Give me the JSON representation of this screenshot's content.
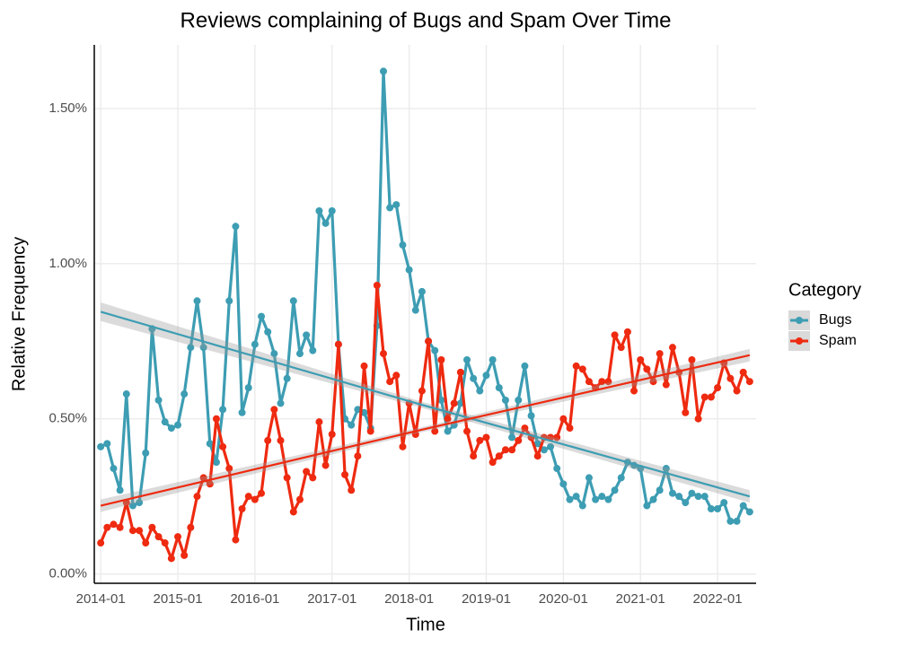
{
  "chart_data": {
    "type": "line",
    "title": "Reviews complaining of Bugs and Spam Over Time",
    "x_label": "Time",
    "y_label": "Relative Frequency",
    "legend": {
      "title": "Category",
      "position": "right"
    },
    "grid": true,
    "x": [
      "2014-01",
      "2014-02",
      "2014-03",
      "2014-04",
      "2014-05",
      "2014-06",
      "2014-07",
      "2014-08",
      "2014-09",
      "2014-10",
      "2014-11",
      "2014-12",
      "2015-01",
      "2015-02",
      "2015-03",
      "2015-04",
      "2015-05",
      "2015-06",
      "2015-07",
      "2015-08",
      "2015-09",
      "2015-10",
      "2015-11",
      "2015-12",
      "2016-01",
      "2016-02",
      "2016-03",
      "2016-04",
      "2016-05",
      "2016-06",
      "2016-07",
      "2016-08",
      "2016-09",
      "2016-10",
      "2016-11",
      "2016-12",
      "2017-01",
      "2017-02",
      "2017-03",
      "2017-04",
      "2017-05",
      "2017-06",
      "2017-07",
      "2017-08",
      "2017-09",
      "2017-10",
      "2017-11",
      "2017-12",
      "2018-01",
      "2018-02",
      "2018-03",
      "2018-04",
      "2018-05",
      "2018-06",
      "2018-07",
      "2018-08",
      "2018-09",
      "2018-10",
      "2018-11",
      "2018-12",
      "2019-01",
      "2019-02",
      "2019-03",
      "2019-04",
      "2019-05",
      "2019-06",
      "2019-07",
      "2019-08",
      "2019-09",
      "2019-10",
      "2019-11",
      "2019-12",
      "2020-01",
      "2020-02",
      "2020-03",
      "2020-04",
      "2020-05",
      "2020-06",
      "2020-07",
      "2020-08",
      "2020-09",
      "2020-10",
      "2020-11",
      "2020-12",
      "2021-01",
      "2021-02",
      "2021-03",
      "2021-04",
      "2021-05",
      "2021-06",
      "2021-07",
      "2021-08",
      "2021-09",
      "2021-10",
      "2021-11",
      "2021-12",
      "2022-01",
      "2022-02",
      "2022-03",
      "2022-04",
      "2022-05",
      "2022-06"
    ],
    "xlim": [
      "2013-12",
      "2022-07"
    ],
    "xticks": [
      "2014-01",
      "2015-01",
      "2016-01",
      "2017-01",
      "2018-01",
      "2019-01",
      "2020-01",
      "2021-01",
      "2022-01"
    ],
    "ylim": [
      -0.03,
      1.705
    ],
    "yticks": [
      {
        "value": 0,
        "label": "0.00%"
      },
      {
        "value": 0.5,
        "label": "0.50%"
      },
      {
        "value": 1,
        "label": "1.00%"
      },
      {
        "value": 1.5,
        "label": "1.50%"
      }
    ],
    "series": [
      {
        "name": "Bugs",
        "color": "#3d9db3",
        "values": [
          0.41,
          0.42,
          0.34,
          0.27,
          0.58,
          0.22,
          0.23,
          0.39,
          0.79,
          0.56,
          0.49,
          0.47,
          0.48,
          0.58,
          0.73,
          0.88,
          0.73,
          0.42,
          0.36,
          0.53,
          0.88,
          1.12,
          0.52,
          0.6,
          0.74,
          0.83,
          0.78,
          0.71,
          0.55,
          0.63,
          0.88,
          0.71,
          0.77,
          0.72,
          1.17,
          1.13,
          1.17,
          0.74,
          0.5,
          0.48,
          0.53,
          0.52,
          0.47,
          0.8,
          1.62,
          1.18,
          1.19,
          1.06,
          0.98,
          0.85,
          0.91,
          0.75,
          0.72,
          0.56,
          0.46,
          0.48,
          0.55,
          0.69,
          0.63,
          0.59,
          0.64,
          0.69,
          0.6,
          0.56,
          0.44,
          0.56,
          0.67,
          0.51,
          0.42,
          0.4,
          0.41,
          0.34,
          0.29,
          0.24,
          0.25,
          0.22,
          0.31,
          0.24,
          0.25,
          0.24,
          0.27,
          0.31,
          0.36,
          0.35,
          0.34,
          0.22,
          0.24,
          0.27,
          0.34,
          0.26,
          0.25,
          0.23,
          0.26,
          0.25,
          0.25,
          0.21,
          0.21,
          0.23,
          0.17,
          0.17,
          0.22,
          0.2
        ],
        "trend": {
          "x": [
            "2014-01",
            "2018-03",
            "2022-06"
          ],
          "values": [
            0.845,
            0.545,
            0.25
          ],
          "lower": [
            0.815,
            0.535,
            0.23
          ],
          "upper": [
            0.875,
            0.555,
            0.27
          ]
        }
      },
      {
        "name": "Spam",
        "color": "#ee2a10",
        "values": [
          0.1,
          0.15,
          0.16,
          0.15,
          0.23,
          0.14,
          0.14,
          0.1,
          0.15,
          0.12,
          0.1,
          0.05,
          0.12,
          0.06,
          0.15,
          0.25,
          0.31,
          0.29,
          0.5,
          0.41,
          0.34,
          0.11,
          0.21,
          0.25,
          0.24,
          0.26,
          0.43,
          0.53,
          0.43,
          0.31,
          0.2,
          0.24,
          0.33,
          0.31,
          0.49,
          0.35,
          0.45,
          0.74,
          0.32,
          0.27,
          0.38,
          0.67,
          0.46,
          0.93,
          0.71,
          0.62,
          0.64,
          0.41,
          0.55,
          0.45,
          0.59,
          0.75,
          0.46,
          0.69,
          0.5,
          0.55,
          0.65,
          0.46,
          0.38,
          0.43,
          0.44,
          0.36,
          0.38,
          0.4,
          0.4,
          0.43,
          0.47,
          0.44,
          0.38,
          0.44,
          0.44,
          0.44,
          0.5,
          0.47,
          0.67,
          0.66,
          0.62,
          0.6,
          0.62,
          0.62,
          0.77,
          0.73,
          0.78,
          0.59,
          0.69,
          0.66,
          0.62,
          0.71,
          0.61,
          0.73,
          0.65,
          0.52,
          0.69,
          0.5,
          0.57,
          0.57,
          0.6,
          0.68,
          0.63,
          0.59,
          0.65,
          0.62
        ],
        "trend": {
          "x": [
            "2014-01",
            "2018-03",
            "2022-06"
          ],
          "values": [
            0.22,
            0.465,
            0.705
          ],
          "lower": [
            0.2,
            0.457,
            0.685
          ],
          "upper": [
            0.24,
            0.473,
            0.725
          ]
        }
      }
    ]
  }
}
